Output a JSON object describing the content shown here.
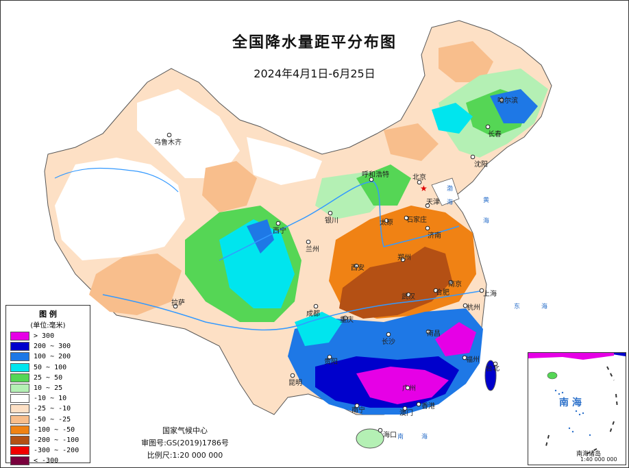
{
  "title": "全国降水量距平分布图",
  "subtitle": "2024年4月1日-6月25日",
  "legend": {
    "title": "图 例",
    "unit": "(单位:毫米)",
    "items": [
      {
        "label": "> 300",
        "color": "#e600e6"
      },
      {
        "label": "200 ~ 300",
        "color": "#0000cc"
      },
      {
        "label": "100 ~ 200",
        "color": "#1e78e6"
      },
      {
        "label": "50 ~ 100",
        "color": "#00e5ee"
      },
      {
        "label": "25 ~ 50",
        "color": "#55d655"
      },
      {
        "label": "10 ~ 25",
        "color": "#b4f0b4"
      },
      {
        "label": "-10 ~ 10",
        "color": "#ffffff"
      },
      {
        "label": "-25 ~ -10",
        "color": "#fde0c5"
      },
      {
        "label": "-50 ~ -25",
        "color": "#f8be8c"
      },
      {
        "label": "-100 ~ -50",
        "color": "#f08214"
      },
      {
        "label": "-200 ~ -100",
        "color": "#b45014"
      },
      {
        "label": "-300 ~ -200",
        "color": "#f00000"
      },
      {
        "label": "< -300",
        "color": "#78003c"
      }
    ]
  },
  "credits": {
    "org": "国家气候中心",
    "approval": "审图号:GS(2019)1786号",
    "scale": "比例尺:1:20 000 000"
  },
  "inset": {
    "sea_label": "南 海",
    "caption": "南海诸岛",
    "scale": "1:40 000 000"
  },
  "cities": [
    {
      "name": "乌鲁木齐"
    },
    {
      "name": "哈尔滨"
    },
    {
      "name": "长春"
    },
    {
      "name": "沈阳"
    },
    {
      "name": "呼和浩特"
    },
    {
      "name": "北京"
    },
    {
      "name": "天津"
    },
    {
      "name": "太原"
    },
    {
      "name": "石家庄"
    },
    {
      "name": "济南"
    },
    {
      "name": "银川"
    },
    {
      "name": "西宁"
    },
    {
      "name": "兰州"
    },
    {
      "name": "西安"
    },
    {
      "name": "郑州"
    },
    {
      "name": "南京"
    },
    {
      "name": "合肥"
    },
    {
      "name": "上海"
    },
    {
      "name": "武汉"
    },
    {
      "name": "杭州"
    },
    {
      "name": "拉萨"
    },
    {
      "name": "成都"
    },
    {
      "name": "重庆"
    },
    {
      "name": "长沙"
    },
    {
      "name": "南昌"
    },
    {
      "name": "福州"
    },
    {
      "name": "台北"
    },
    {
      "name": "贵阳"
    },
    {
      "name": "昆明"
    },
    {
      "name": "南宁"
    },
    {
      "name": "广州"
    },
    {
      "name": "澳门"
    },
    {
      "name": "香港"
    },
    {
      "name": "海口"
    }
  ],
  "sea_labels": [
    "东",
    "海",
    "南",
    "海",
    "黄",
    "海",
    "渤",
    "海"
  ]
}
